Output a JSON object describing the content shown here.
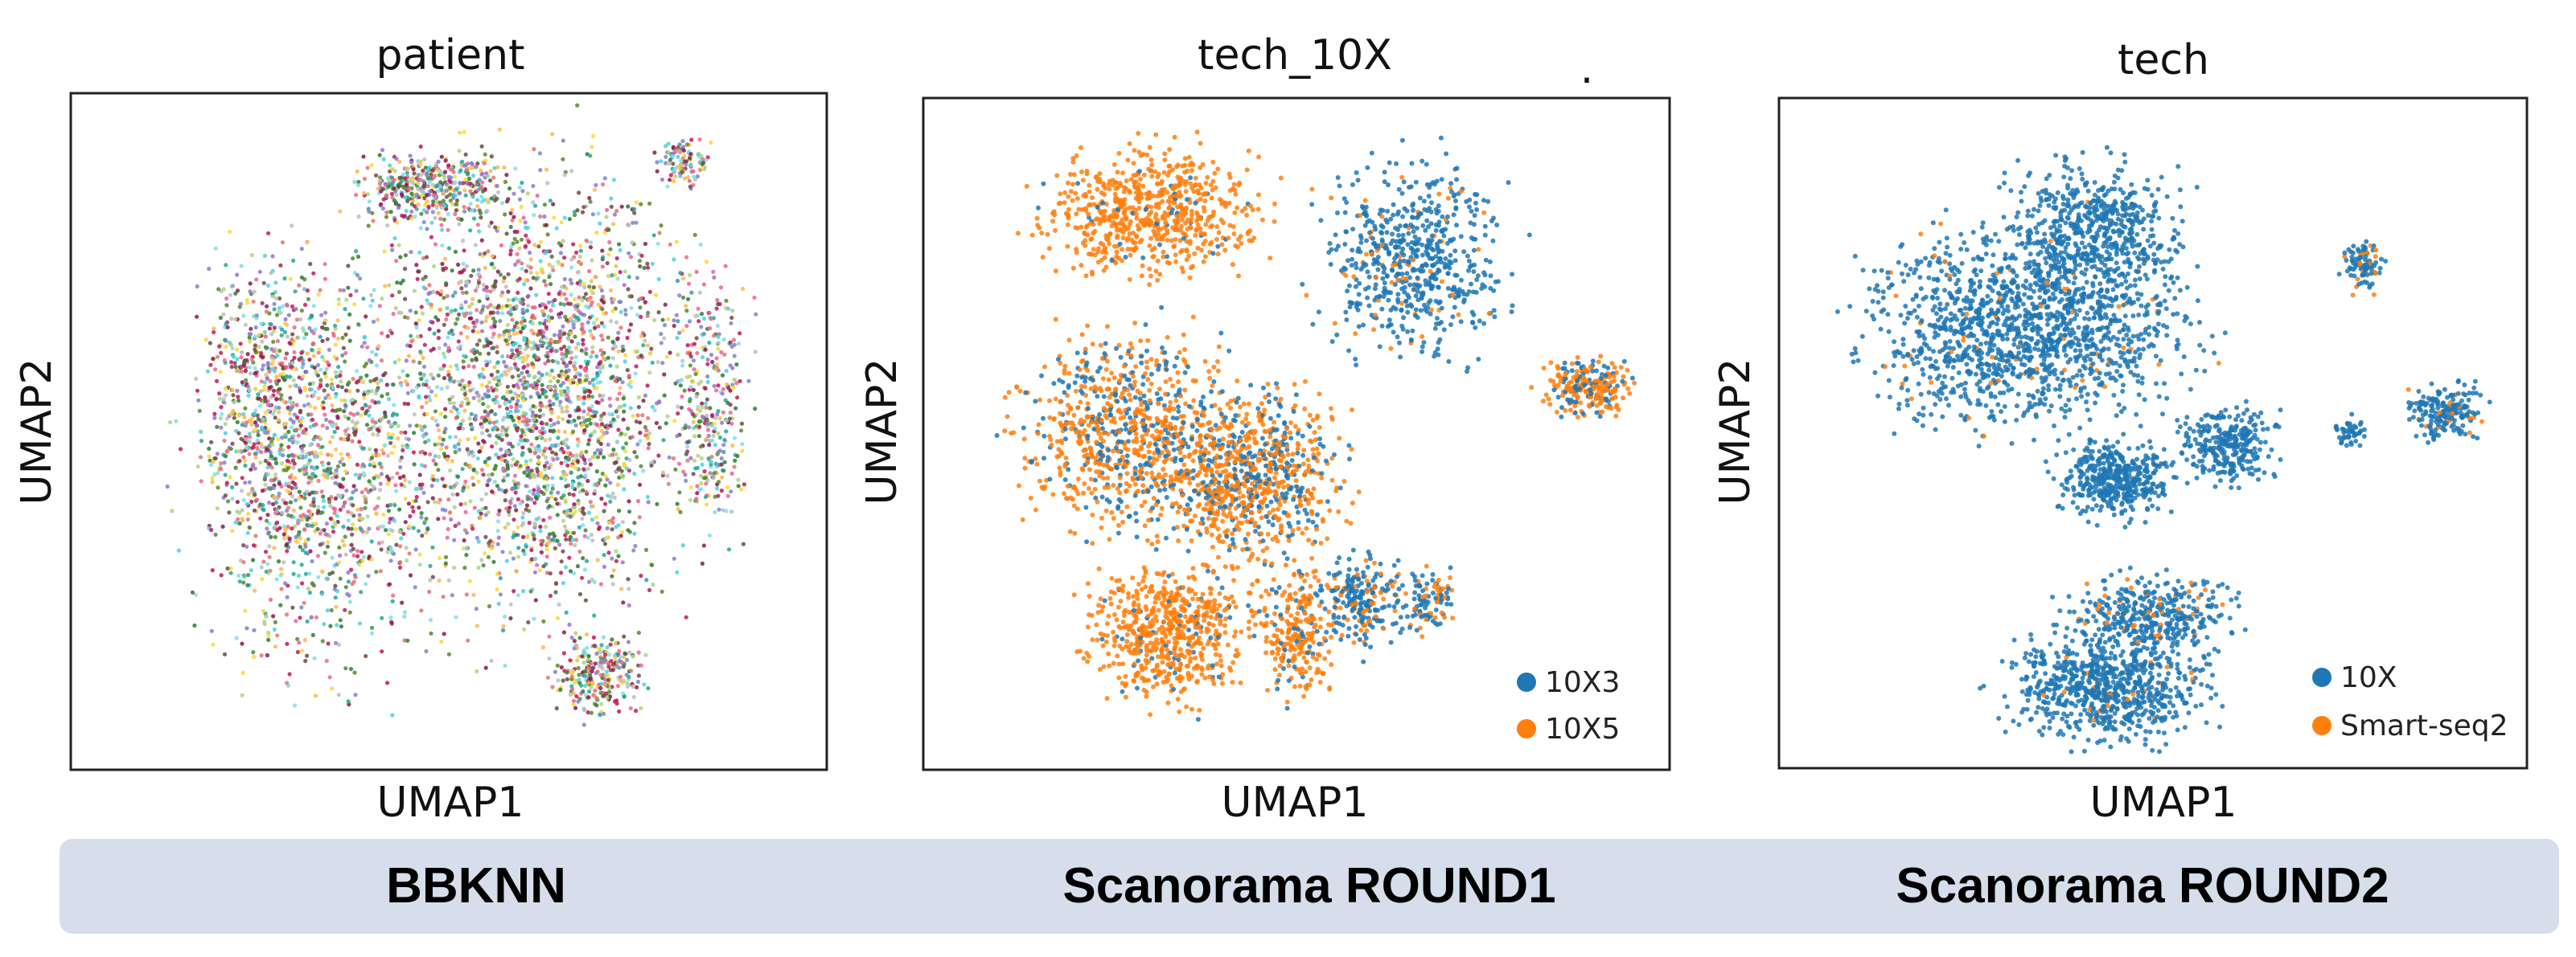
{
  "figure": {
    "stray_mark": "."
  },
  "methods": [
    "BBKNN",
    "Scanorama ROUND1",
    "Scanorama ROUND2"
  ],
  "colors": {
    "blue": "#1f77b4",
    "orange": "#ff7f0e",
    "banner": "#d5deea",
    "patient_palette": [
      "#c2185b",
      "#8b1a4a",
      "#2e7d32",
      "#6d4c41",
      "#26a69a",
      "#80deea",
      "#fdd835",
      "#9575cd",
      "#e57373",
      "#bdbdbd",
      "#558b2f",
      "#ffb74d",
      "#4dd0e1",
      "#aed581",
      "#f06292",
      "#7986cb"
    ]
  },
  "chart_data": [
    {
      "type": "scatter",
      "title": "patient",
      "xlabel": "UMAP1",
      "ylabel": "UMAP2",
      "color_by": "patient",
      "legend": null,
      "grid": false,
      "ticks": false,
      "series": [],
      "clusters": [
        {
          "cx": 0.33,
          "cy": 0.55,
          "rx": 0.22,
          "ry": 0.42,
          "share": 0.24,
          "mix": "patient"
        },
        {
          "cx": 0.62,
          "cy": 0.45,
          "rx": 0.26,
          "ry": 0.46,
          "share": 0.46,
          "mix": "patient"
        },
        {
          "cx": 0.48,
          "cy": 0.14,
          "rx": 0.14,
          "ry": 0.07,
          "share": 0.08,
          "mix": "patient"
        },
        {
          "cx": 0.81,
          "cy": 0.1,
          "rx": 0.05,
          "ry": 0.05,
          "share": 0.02,
          "mix": "patient"
        },
        {
          "cx": 0.85,
          "cy": 0.46,
          "rx": 0.07,
          "ry": 0.26,
          "share": 0.06,
          "mix": "patient"
        },
        {
          "cx": 0.7,
          "cy": 0.86,
          "rx": 0.09,
          "ry": 0.08,
          "share": 0.05,
          "mix": "patient"
        },
        {
          "cx": 0.26,
          "cy": 0.45,
          "rx": 0.12,
          "ry": 0.28,
          "share": 0.09,
          "mix": "patient"
        }
      ]
    },
    {
      "type": "scatter",
      "title": "tech_10X",
      "xlabel": "UMAP1",
      "ylabel": "UMAP2",
      "color_by": "tech_10X",
      "legend": "bottom-right",
      "grid": false,
      "ticks": false,
      "series": [
        {
          "name": "10X3",
          "color": "#1f77b4"
        },
        {
          "name": "10X5",
          "color": "#ff7f0e"
        }
      ],
      "clusters": [
        {
          "cx": 0.31,
          "cy": 0.17,
          "rx": 0.2,
          "ry": 0.13,
          "share": 0.14,
          "mix": [
            0.05,
            0.95
          ]
        },
        {
          "cx": 0.66,
          "cy": 0.24,
          "rx": 0.17,
          "ry": 0.19,
          "share": 0.13,
          "mix": [
            0.9,
            0.1
          ]
        },
        {
          "cx": 0.27,
          "cy": 0.5,
          "rx": 0.19,
          "ry": 0.21,
          "share": 0.16,
          "mix": [
            0.35,
            0.65
          ]
        },
        {
          "cx": 0.44,
          "cy": 0.56,
          "rx": 0.17,
          "ry": 0.18,
          "share": 0.18,
          "mix": [
            0.35,
            0.65
          ]
        },
        {
          "cx": 0.33,
          "cy": 0.8,
          "rx": 0.15,
          "ry": 0.14,
          "share": 0.13,
          "mix": [
            0.1,
            0.9
          ]
        },
        {
          "cx": 0.5,
          "cy": 0.8,
          "rx": 0.07,
          "ry": 0.14,
          "share": 0.05,
          "mix": [
            0.2,
            0.8
          ]
        },
        {
          "cx": 0.59,
          "cy": 0.75,
          "rx": 0.08,
          "ry": 0.1,
          "share": 0.05,
          "mix": [
            0.75,
            0.25
          ]
        },
        {
          "cx": 0.89,
          "cy": 0.43,
          "rx": 0.08,
          "ry": 0.06,
          "share": 0.05,
          "mix": [
            0.3,
            0.7
          ]
        },
        {
          "cx": 0.68,
          "cy": 0.75,
          "rx": 0.05,
          "ry": 0.07,
          "share": 0.02,
          "mix": [
            0.6,
            0.4
          ]
        }
      ]
    },
    {
      "type": "scatter",
      "title": "tech",
      "xlabel": "UMAP1",
      "ylabel": "UMAP2",
      "color_by": "tech",
      "legend": "bottom-right",
      "grid": false,
      "ticks": false,
      "series": [
        {
          "name": "10X",
          "color": "#1f77b4"
        },
        {
          "name": "Smart-seq2",
          "color": "#ff7f0e"
        }
      ],
      "clusters": [
        {
          "cx": 0.33,
          "cy": 0.35,
          "rx": 0.29,
          "ry": 0.2,
          "share": 0.3,
          "mix": [
            0.96,
            0.04
          ]
        },
        {
          "cx": 0.42,
          "cy": 0.2,
          "rx": 0.16,
          "ry": 0.14,
          "share": 0.12,
          "mix": [
            0.99,
            0.01
          ]
        },
        {
          "cx": 0.45,
          "cy": 0.57,
          "rx": 0.1,
          "ry": 0.08,
          "share": 0.09,
          "mix": [
            1.0,
            0.0
          ]
        },
        {
          "cx": 0.6,
          "cy": 0.52,
          "rx": 0.09,
          "ry": 0.08,
          "share": 0.06,
          "mix": [
            1.0,
            0.0
          ]
        },
        {
          "cx": 0.44,
          "cy": 0.88,
          "rx": 0.18,
          "ry": 0.11,
          "share": 0.16,
          "mix": [
            0.95,
            0.05
          ]
        },
        {
          "cx": 0.5,
          "cy": 0.77,
          "rx": 0.15,
          "ry": 0.08,
          "share": 0.08,
          "mix": [
            0.85,
            0.15
          ]
        },
        {
          "cx": 0.78,
          "cy": 0.25,
          "rx": 0.04,
          "ry": 0.05,
          "share": 0.02,
          "mix": [
            0.8,
            0.2
          ]
        },
        {
          "cx": 0.89,
          "cy": 0.47,
          "rx": 0.07,
          "ry": 0.06,
          "share": 0.04,
          "mix": [
            0.85,
            0.15
          ]
        },
        {
          "cx": 0.76,
          "cy": 0.5,
          "rx": 0.03,
          "ry": 0.03,
          "share": 0.01,
          "mix": [
            1.0,
            0.0
          ]
        }
      ]
    }
  ]
}
